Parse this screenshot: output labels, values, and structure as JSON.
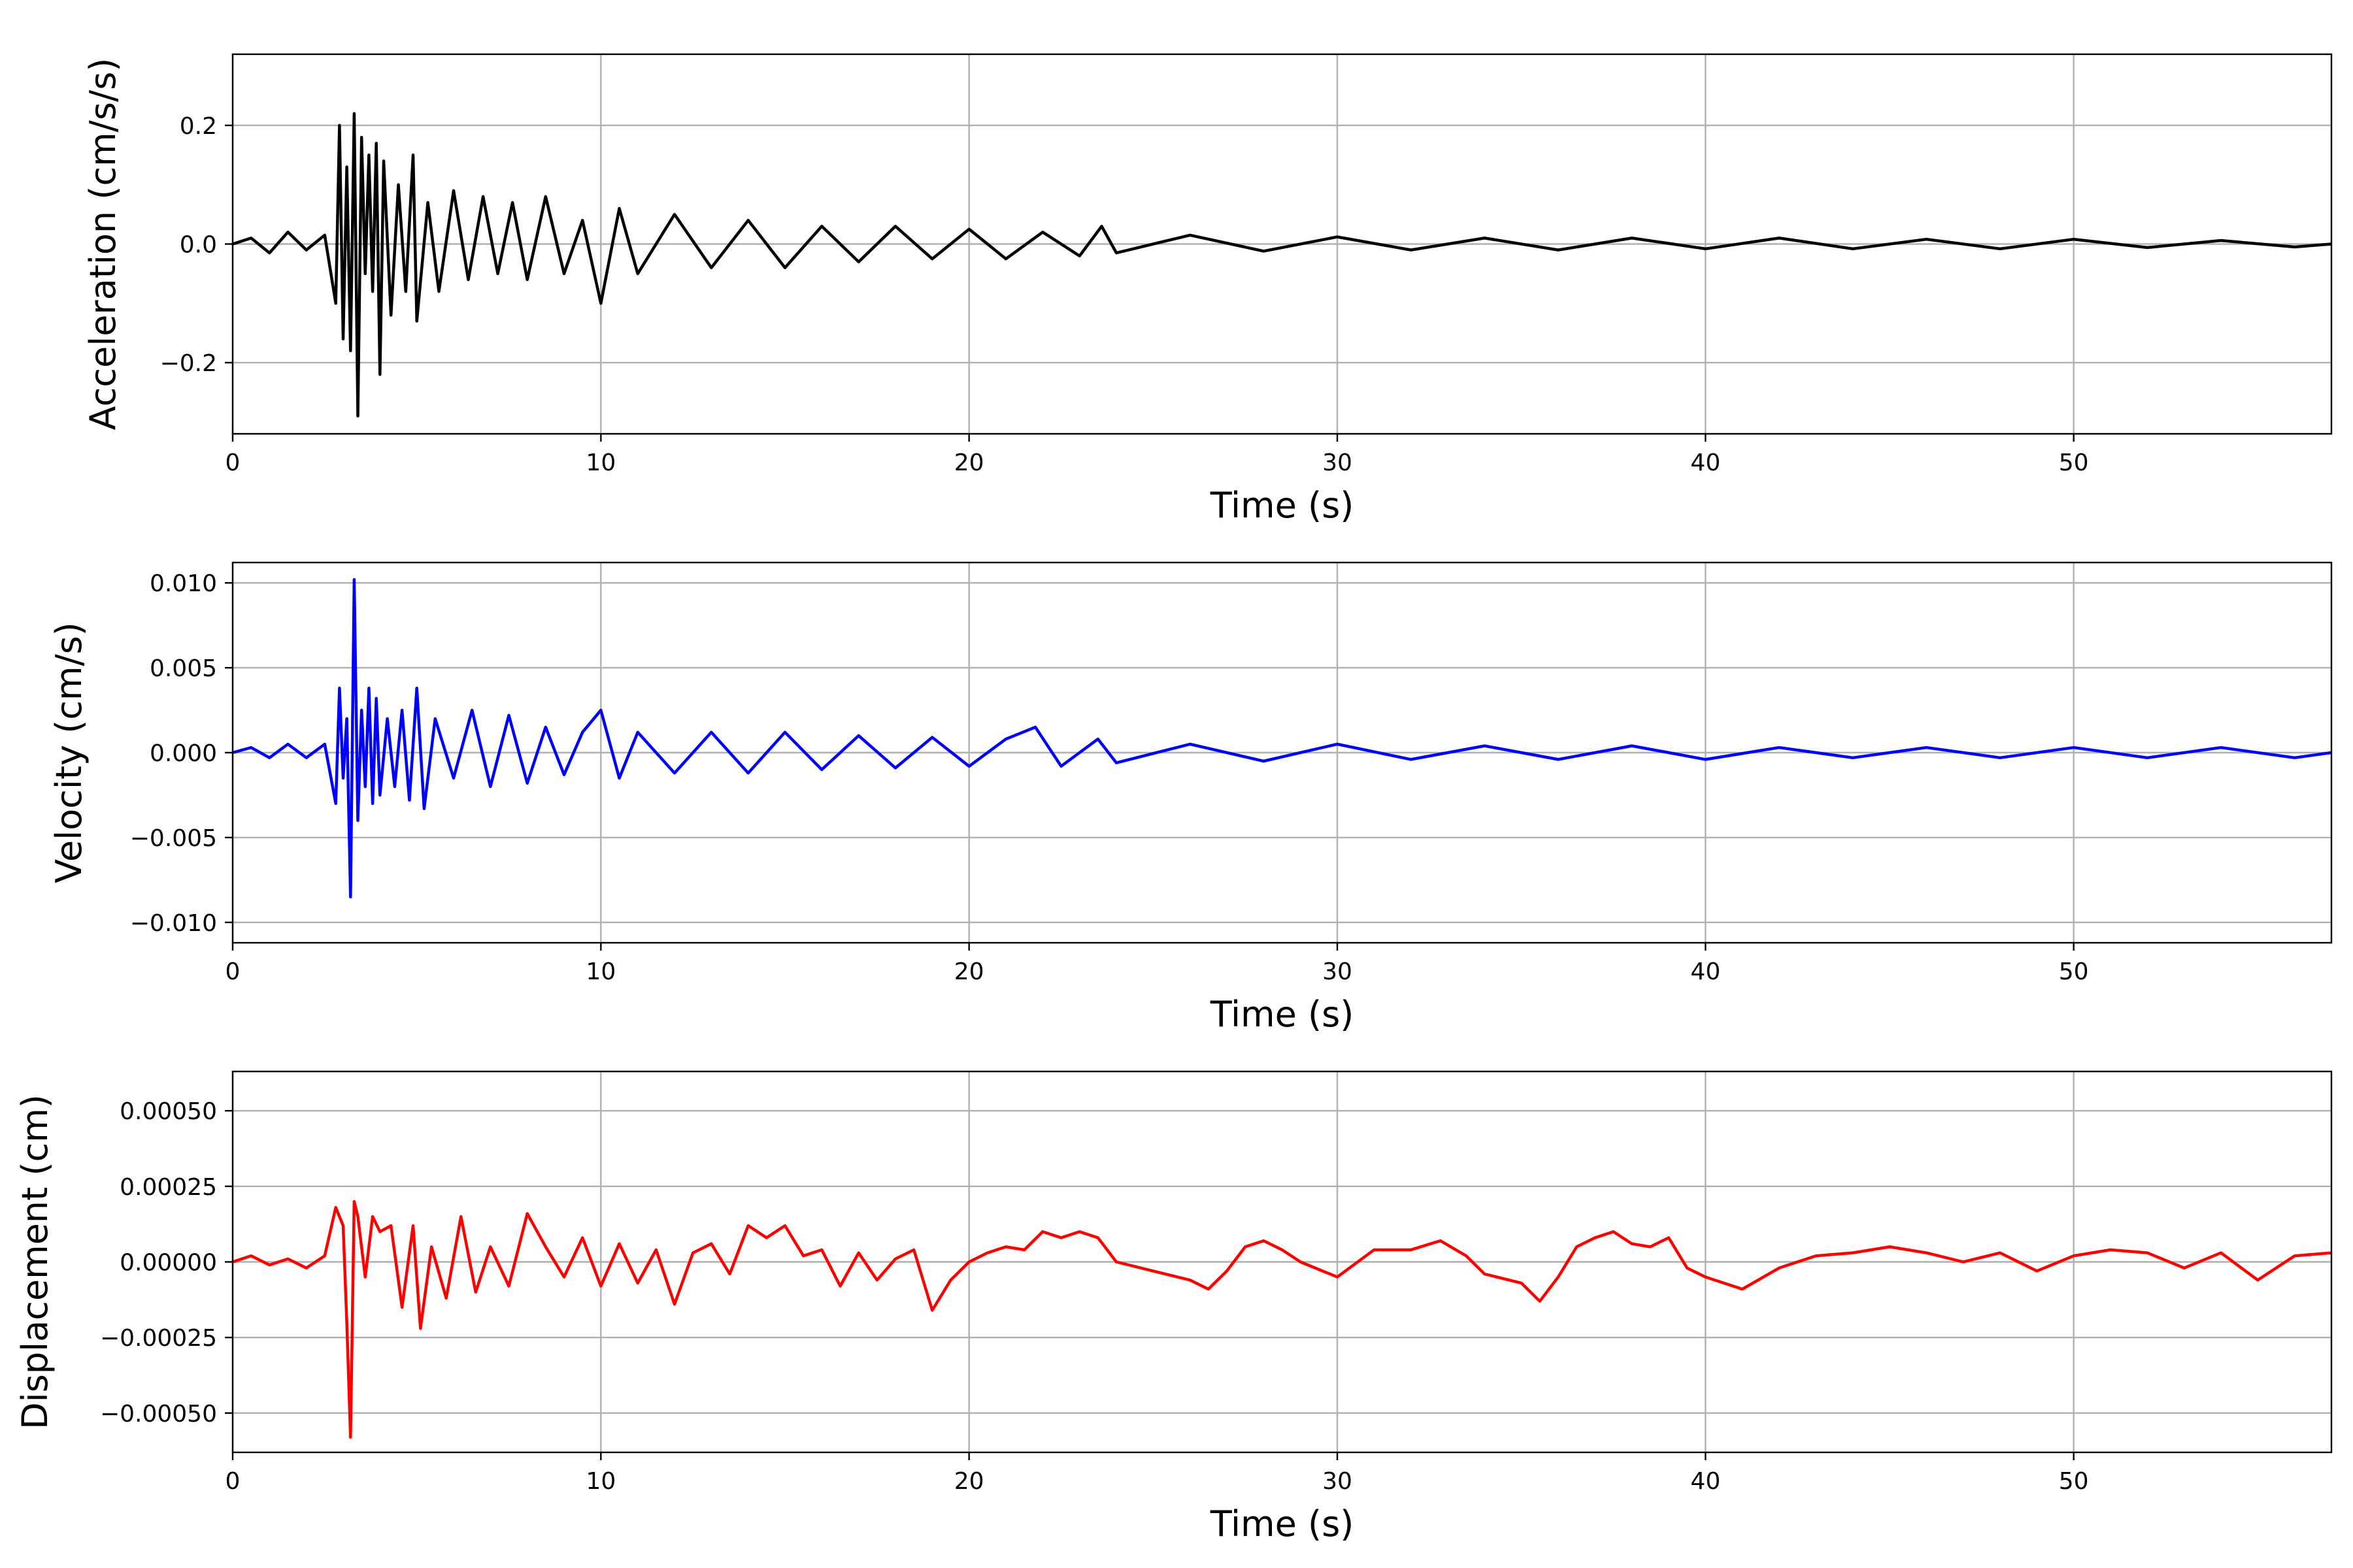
{
  "chart_data": [
    {
      "type": "line",
      "title": "",
      "xlabel": "Time (s)",
      "ylabel": "Acceleration (cm/s/s)",
      "xlim": [
        0,
        57
      ],
      "ylim": [
        -0.32,
        0.32
      ],
      "xticks": [
        0,
        10,
        20,
        30,
        40,
        50
      ],
      "xtick_labels": [
        "0",
        "10",
        "20",
        "30",
        "40",
        "50"
      ],
      "yticks": [
        -0.2,
        0.0,
        0.2
      ],
      "ytick_labels": [
        "−0.2",
        "0.0",
        "0.2"
      ],
      "grid": true,
      "legend": "none",
      "color": "#000000",
      "series": [
        {
          "x": [
            0,
            0.5,
            1.0,
            1.5,
            2.0,
            2.5,
            2.8,
            2.9,
            3.0,
            3.1,
            3.2,
            3.3,
            3.4,
            3.5,
            3.6,
            3.7,
            3.8,
            3.9,
            4.0,
            4.1,
            4.3,
            4.5,
            4.7,
            4.9,
            5.0,
            5.3,
            5.6,
            6.0,
            6.4,
            6.8,
            7.2,
            7.6,
            8.0,
            8.5,
            9.0,
            9.5,
            10.0,
            10.5,
            11.0,
            12.0,
            13.0,
            14.0,
            15.0,
            16.0,
            17.0,
            18.0,
            19.0,
            20.0,
            21.0,
            22.0,
            23.0,
            23.6,
            24.0,
            26.0,
            28.0,
            30.0,
            32.0,
            34.0,
            36.0,
            38.0,
            40.0,
            42.0,
            44.0,
            46.0,
            48.0,
            50.0,
            52.0,
            54.0,
            56.0,
            57.0
          ],
          "y": [
            0.0,
            0.01,
            -0.015,
            0.02,
            -0.01,
            0.015,
            -0.1,
            0.2,
            -0.16,
            0.13,
            -0.18,
            0.22,
            -0.29,
            0.18,
            -0.05,
            0.15,
            -0.08,
            0.17,
            -0.22,
            0.14,
            -0.12,
            0.1,
            -0.08,
            0.15,
            -0.13,
            0.07,
            -0.08,
            0.09,
            -0.06,
            0.08,
            -0.05,
            0.07,
            -0.06,
            0.08,
            -0.05,
            0.04,
            -0.1,
            0.06,
            -0.05,
            0.05,
            -0.04,
            0.04,
            -0.04,
            0.03,
            -0.03,
            0.03,
            -0.025,
            0.025,
            -0.025,
            0.02,
            -0.02,
            0.03,
            -0.015,
            0.015,
            -0.012,
            0.012,
            -0.01,
            0.01,
            -0.01,
            0.01,
            -0.008,
            0.01,
            -0.008,
            0.008,
            -0.008,
            0.008,
            -0.006,
            0.006,
            -0.005,
            0.0
          ]
        }
      ]
    },
    {
      "type": "line",
      "title": "",
      "xlabel": "Time (s)",
      "ylabel": "Velocity (cm/s)",
      "xlim": [
        0,
        57
      ],
      "ylim": [
        -0.0112,
        0.0112
      ],
      "xticks": [
        0,
        10,
        20,
        30,
        40,
        50
      ],
      "xtick_labels": [
        "0",
        "10",
        "20",
        "30",
        "40",
        "50"
      ],
      "yticks": [
        -0.01,
        -0.005,
        0.0,
        0.005,
        0.01
      ],
      "ytick_labels": [
        "−0.010",
        "−0.005",
        "0.000",
        "0.005",
        "0.010"
      ],
      "grid": true,
      "legend": "none",
      "color": "#0000ff",
      "series": [
        {
          "x": [
            0,
            0.5,
            1.0,
            1.5,
            2.0,
            2.5,
            2.8,
            2.9,
            3.0,
            3.1,
            3.2,
            3.3,
            3.4,
            3.5,
            3.6,
            3.7,
            3.8,
            3.9,
            4.0,
            4.2,
            4.4,
            4.6,
            4.8,
            5.0,
            5.2,
            5.5,
            6.0,
            6.5,
            7.0,
            7.5,
            8.0,
            8.5,
            9.0,
            9.5,
            10.0,
            10.5,
            11.0,
            12.0,
            13.0,
            14.0,
            15.0,
            16.0,
            17.0,
            18.0,
            19.0,
            20.0,
            21.0,
            21.8,
            22.5,
            23.5,
            24.0,
            26.0,
            28.0,
            30.0,
            32.0,
            34.0,
            36.0,
            38.0,
            40.0,
            42.0,
            44.0,
            46.0,
            48.0,
            50.0,
            52.0,
            54.0,
            56.0,
            57.0
          ],
          "y": [
            0.0,
            0.0003,
            -0.0003,
            0.0005,
            -0.0003,
            0.0005,
            -0.003,
            0.0038,
            -0.0015,
            0.002,
            -0.0085,
            0.0102,
            -0.004,
            0.0025,
            -0.002,
            0.0038,
            -0.003,
            0.0032,
            -0.0025,
            0.002,
            -0.002,
            0.0025,
            -0.0028,
            0.0038,
            -0.0033,
            0.002,
            -0.0015,
            0.0025,
            -0.002,
            0.0022,
            -0.0018,
            0.0015,
            -0.0013,
            0.0012,
            0.0025,
            -0.0015,
            0.0012,
            -0.0012,
            0.0012,
            -0.0012,
            0.0012,
            -0.001,
            0.001,
            -0.0009,
            0.0009,
            -0.0008,
            0.0008,
            0.0015,
            -0.0008,
            0.0008,
            -0.0006,
            0.0005,
            -0.0005,
            0.0005,
            -0.0004,
            0.0004,
            -0.0004,
            0.0004,
            -0.0004,
            0.0003,
            -0.0003,
            0.0003,
            -0.0003,
            0.0003,
            -0.0003,
            0.0003,
            -0.0003,
            0.0
          ]
        }
      ]
    },
    {
      "type": "line",
      "title": "",
      "xlabel": "Time (s)",
      "ylabel": "Displacement (cm)",
      "xlim": [
        0,
        57
      ],
      "ylim": [
        -0.00063,
        0.00063
      ],
      "xticks": [
        0,
        10,
        20,
        30,
        40,
        50
      ],
      "xtick_labels": [
        "0",
        "10",
        "20",
        "30",
        "40",
        "50"
      ],
      "yticks": [
        -0.0005,
        -0.00025,
        0.0,
        0.00025,
        0.0005
      ],
      "ytick_labels": [
        "−0.00050",
        "−0.00025",
        "0.00000",
        "0.00025",
        "0.00050"
      ],
      "grid": true,
      "legend": "none",
      "color": "#ff0000",
      "series": [
        {
          "x": [
            0,
            0.5,
            1.0,
            1.5,
            2.0,
            2.5,
            2.8,
            3.0,
            3.1,
            3.2,
            3.3,
            3.4,
            3.6,
            3.8,
            4.0,
            4.3,
            4.6,
            4.9,
            5.1,
            5.4,
            5.8,
            6.2,
            6.6,
            7.0,
            7.5,
            8.0,
            8.5,
            9.0,
            9.5,
            10.0,
            10.5,
            11.0,
            11.5,
            12.0,
            12.5,
            13.0,
            13.5,
            14.0,
            14.5,
            15.0,
            15.5,
            16.0,
            16.5,
            17.0,
            17.5,
            18.0,
            18.5,
            19.0,
            19.5,
            20.0,
            20.5,
            21.0,
            21.5,
            22.0,
            22.5,
            23.0,
            23.5,
            24.0,
            25.0,
            26.0,
            26.5,
            27.0,
            27.5,
            28.0,
            28.5,
            29.0,
            30.0,
            31.0,
            32.0,
            32.8,
            33.5,
            34.0,
            35.0,
            35.5,
            36.0,
            36.5,
            37.0,
            37.5,
            38.0,
            38.5,
            39.0,
            39.5,
            40.0,
            41.0,
            42.0,
            43.0,
            44.0,
            45.0,
            46.0,
            47.0,
            48.0,
            49.0,
            50.0,
            51.0,
            52.0,
            53.0,
            54.0,
            55.0,
            56.0,
            57.0
          ],
          "y": [
            0.0,
            2e-05,
            -1e-05,
            1e-05,
            -2e-05,
            2e-05,
            0.00018,
            0.00012,
            -0.0002,
            -0.00058,
            0.0002,
            0.00015,
            -5e-05,
            0.00015,
            0.0001,
            0.00012,
            -0.00015,
            0.00012,
            -0.00022,
            5e-05,
            -0.00012,
            0.00015,
            -0.0001,
            5e-05,
            -8e-05,
            0.00016,
            5e-05,
            -5e-05,
            8e-05,
            -8e-05,
            6e-05,
            -7e-05,
            4e-05,
            -0.00014,
            3e-05,
            6e-05,
            -4e-05,
            0.00012,
            8e-05,
            0.00012,
            2e-05,
            4e-05,
            -8e-05,
            3e-05,
            -6e-05,
            1e-05,
            4e-05,
            -0.00016,
            -6e-05,
            0.0,
            3e-05,
            5e-05,
            4e-05,
            0.0001,
            8e-05,
            0.0001,
            8e-05,
            0.0,
            -3e-05,
            -6e-05,
            -9e-05,
            -3e-05,
            5e-05,
            7e-05,
            4e-05,
            0.0,
            -5e-05,
            4e-05,
            4e-05,
            7e-05,
            2e-05,
            -4e-05,
            -7e-05,
            -0.00013,
            -5e-05,
            5e-05,
            8e-05,
            0.0001,
            6e-05,
            5e-05,
            8e-05,
            -2e-05,
            -5e-05,
            -9e-05,
            -2e-05,
            2e-05,
            3e-05,
            5e-05,
            3e-05,
            0.0,
            3e-05,
            -3e-05,
            2e-05,
            4e-05,
            3e-05,
            -2e-05,
            3e-05,
            -6e-05,
            2e-05,
            3e-05
          ]
        }
      ]
    }
  ]
}
